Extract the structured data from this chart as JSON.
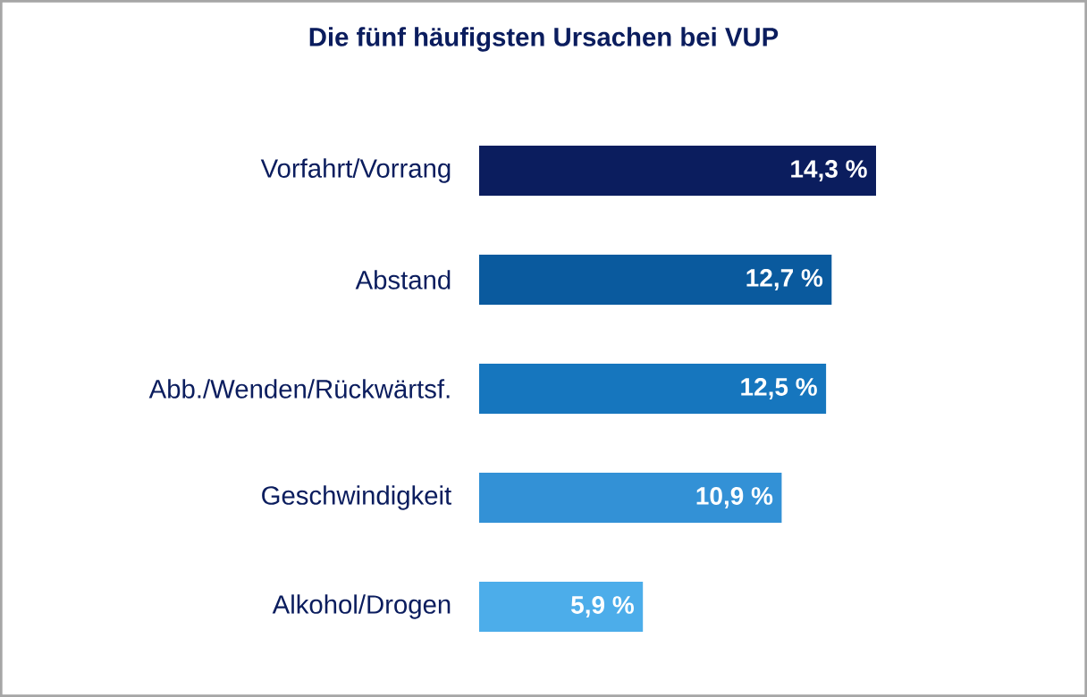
{
  "chart_data": {
    "type": "bar",
    "orientation": "horizontal",
    "title": "Die fünf häufigsten Ursachen bei VUP",
    "categories": [
      "Vorfahrt/Vorrang",
      "Abstand",
      "Abb./Wenden/Rückwärtsf.",
      "Geschwindigkeit",
      "Alkohol/Drogen"
    ],
    "values": [
      14.3,
      12.7,
      12.5,
      10.9,
      5.9
    ],
    "value_labels": [
      "14,3 %",
      "12,7 %",
      "12,5 %",
      "10,9 %",
      "5,9 %"
    ],
    "colors": [
      "#0b1d5e",
      "#0a5a9e",
      "#1676be",
      "#3391d6",
      "#4cadea"
    ]
  }
}
